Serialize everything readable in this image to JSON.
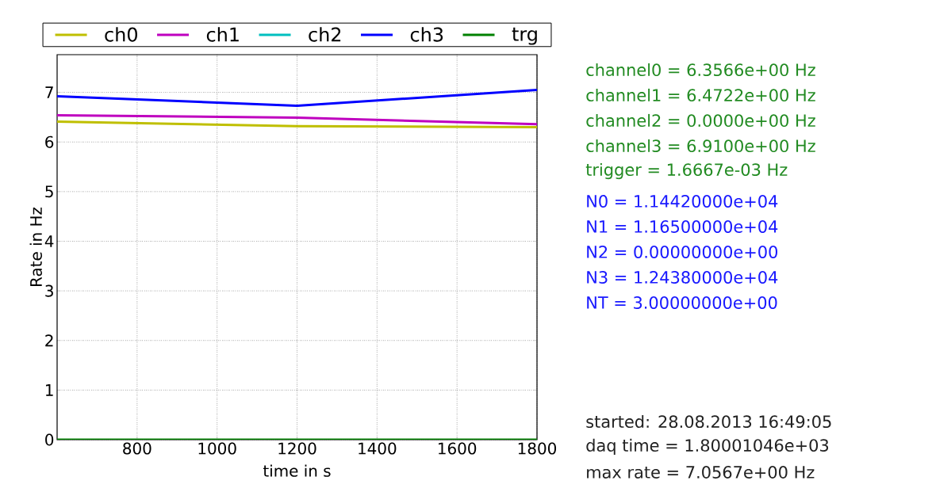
{
  "chart_data": {
    "type": "line",
    "xlabel": "time in s",
    "ylabel": "Rate in Hz",
    "x": [
      600,
      1200,
      1800
    ],
    "series": [
      {
        "name": "ch0",
        "color": "#bfbf00",
        "values": [
          6.41,
          6.32,
          6.3
        ]
      },
      {
        "name": "ch1",
        "color": "#bf00bf",
        "values": [
          6.54,
          6.49,
          6.36
        ]
      },
      {
        "name": "ch2",
        "color": "#00bfbf",
        "values": [
          null,
          null,
          null
        ]
      },
      {
        "name": "ch3",
        "color": "#0000ff",
        "values": [
          6.92,
          6.73,
          7.05
        ]
      },
      {
        "name": "trg",
        "color": "#008000",
        "values": [
          0,
          0,
          0
        ]
      }
    ],
    "xlim": [
      600,
      1800
    ],
    "ylim": [
      0,
      7.76
    ],
    "xticks": [
      800,
      1000,
      1200,
      1400,
      1600,
      1800
    ],
    "yticks": [
      0,
      1,
      2,
      3,
      4,
      5,
      6,
      7
    ],
    "grid": true,
    "legend": "top",
    "line_style": "solid",
    "marker": "none",
    "annotations": [
      "channel0 = 6.3566e+00 Hz",
      "channel1 = 6.4722e+00 Hz",
      "channel2 = 0.0000e+00 Hz",
      "channel3 = 6.9100e+00 Hz",
      "trigger = 1.6667e-03 Hz",
      "N0 = 1.14420000e+04",
      "N1 = 1.16500000e+04",
      "N2 = 0.00000000e+00",
      "N3 = 1.24380000e+04",
      "NT = 3.00000000e+00",
      "started: 28.08.2013 16:49:05",
      "daq time = 1.80001046e+03",
      "max rate = 7.0567e+00 Hz"
    ]
  }
}
